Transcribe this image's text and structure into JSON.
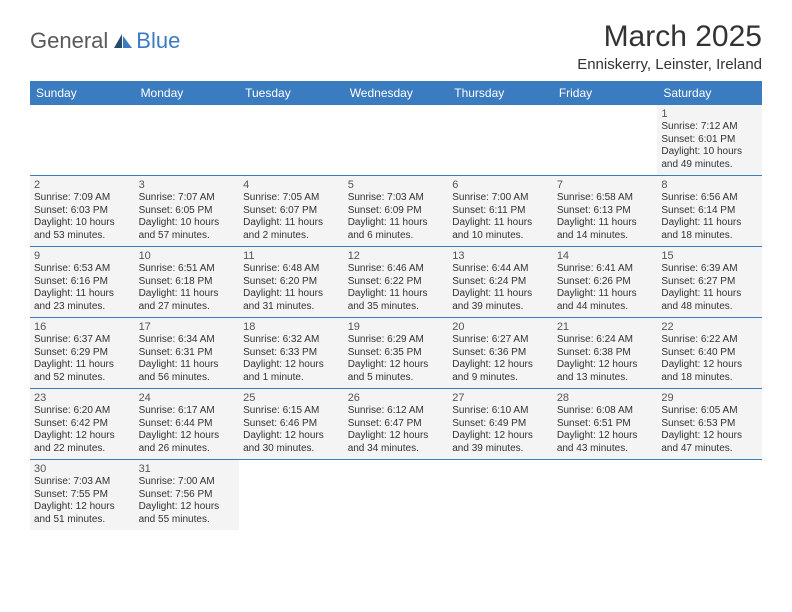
{
  "brand": {
    "general": "General",
    "blue": "Blue"
  },
  "title": "March 2025",
  "location": "Enniskerry, Leinster, Ireland",
  "colors": {
    "header_bg": "#3b7bbf",
    "header_fg": "#ffffff",
    "cell_bg": "#f4f4f4",
    "border": "#3b7bbf",
    "logo_gray": "#5a5a5a",
    "logo_blue": "#3b7bbf"
  },
  "weekdays": [
    "Sunday",
    "Monday",
    "Tuesday",
    "Wednesday",
    "Thursday",
    "Friday",
    "Saturday"
  ],
  "weeks": [
    [
      null,
      null,
      null,
      null,
      null,
      null,
      {
        "n": "1",
        "sr": "7:12 AM",
        "ss": "6:01 PM",
        "dl": "10 hours and 49 minutes."
      }
    ],
    [
      {
        "n": "2",
        "sr": "7:09 AM",
        "ss": "6:03 PM",
        "dl": "10 hours and 53 minutes."
      },
      {
        "n": "3",
        "sr": "7:07 AM",
        "ss": "6:05 PM",
        "dl": "10 hours and 57 minutes."
      },
      {
        "n": "4",
        "sr": "7:05 AM",
        "ss": "6:07 PM",
        "dl": "11 hours and 2 minutes."
      },
      {
        "n": "5",
        "sr": "7:03 AM",
        "ss": "6:09 PM",
        "dl": "11 hours and 6 minutes."
      },
      {
        "n": "6",
        "sr": "7:00 AM",
        "ss": "6:11 PM",
        "dl": "11 hours and 10 minutes."
      },
      {
        "n": "7",
        "sr": "6:58 AM",
        "ss": "6:13 PM",
        "dl": "11 hours and 14 minutes."
      },
      {
        "n": "8",
        "sr": "6:56 AM",
        "ss": "6:14 PM",
        "dl": "11 hours and 18 minutes."
      }
    ],
    [
      {
        "n": "9",
        "sr": "6:53 AM",
        "ss": "6:16 PM",
        "dl": "11 hours and 23 minutes."
      },
      {
        "n": "10",
        "sr": "6:51 AM",
        "ss": "6:18 PM",
        "dl": "11 hours and 27 minutes."
      },
      {
        "n": "11",
        "sr": "6:48 AM",
        "ss": "6:20 PM",
        "dl": "11 hours and 31 minutes."
      },
      {
        "n": "12",
        "sr": "6:46 AM",
        "ss": "6:22 PM",
        "dl": "11 hours and 35 minutes."
      },
      {
        "n": "13",
        "sr": "6:44 AM",
        "ss": "6:24 PM",
        "dl": "11 hours and 39 minutes."
      },
      {
        "n": "14",
        "sr": "6:41 AM",
        "ss": "6:26 PM",
        "dl": "11 hours and 44 minutes."
      },
      {
        "n": "15",
        "sr": "6:39 AM",
        "ss": "6:27 PM",
        "dl": "11 hours and 48 minutes."
      }
    ],
    [
      {
        "n": "16",
        "sr": "6:37 AM",
        "ss": "6:29 PM",
        "dl": "11 hours and 52 minutes."
      },
      {
        "n": "17",
        "sr": "6:34 AM",
        "ss": "6:31 PM",
        "dl": "11 hours and 56 minutes."
      },
      {
        "n": "18",
        "sr": "6:32 AM",
        "ss": "6:33 PM",
        "dl": "12 hours and 1 minute."
      },
      {
        "n": "19",
        "sr": "6:29 AM",
        "ss": "6:35 PM",
        "dl": "12 hours and 5 minutes."
      },
      {
        "n": "20",
        "sr": "6:27 AM",
        "ss": "6:36 PM",
        "dl": "12 hours and 9 minutes."
      },
      {
        "n": "21",
        "sr": "6:24 AM",
        "ss": "6:38 PM",
        "dl": "12 hours and 13 minutes."
      },
      {
        "n": "22",
        "sr": "6:22 AM",
        "ss": "6:40 PM",
        "dl": "12 hours and 18 minutes."
      }
    ],
    [
      {
        "n": "23",
        "sr": "6:20 AM",
        "ss": "6:42 PM",
        "dl": "12 hours and 22 minutes."
      },
      {
        "n": "24",
        "sr": "6:17 AM",
        "ss": "6:44 PM",
        "dl": "12 hours and 26 minutes."
      },
      {
        "n": "25",
        "sr": "6:15 AM",
        "ss": "6:46 PM",
        "dl": "12 hours and 30 minutes."
      },
      {
        "n": "26",
        "sr": "6:12 AM",
        "ss": "6:47 PM",
        "dl": "12 hours and 34 minutes."
      },
      {
        "n": "27",
        "sr": "6:10 AM",
        "ss": "6:49 PM",
        "dl": "12 hours and 39 minutes."
      },
      {
        "n": "28",
        "sr": "6:08 AM",
        "ss": "6:51 PM",
        "dl": "12 hours and 43 minutes."
      },
      {
        "n": "29",
        "sr": "6:05 AM",
        "ss": "6:53 PM",
        "dl": "12 hours and 47 minutes."
      }
    ],
    [
      {
        "n": "30",
        "sr": "7:03 AM",
        "ss": "7:55 PM",
        "dl": "12 hours and 51 minutes."
      },
      {
        "n": "31",
        "sr": "7:00 AM",
        "ss": "7:56 PM",
        "dl": "12 hours and 55 minutes."
      },
      null,
      null,
      null,
      null,
      null
    ]
  ],
  "labels": {
    "sunrise": "Sunrise:",
    "sunset": "Sunset:",
    "daylight": "Daylight:"
  }
}
